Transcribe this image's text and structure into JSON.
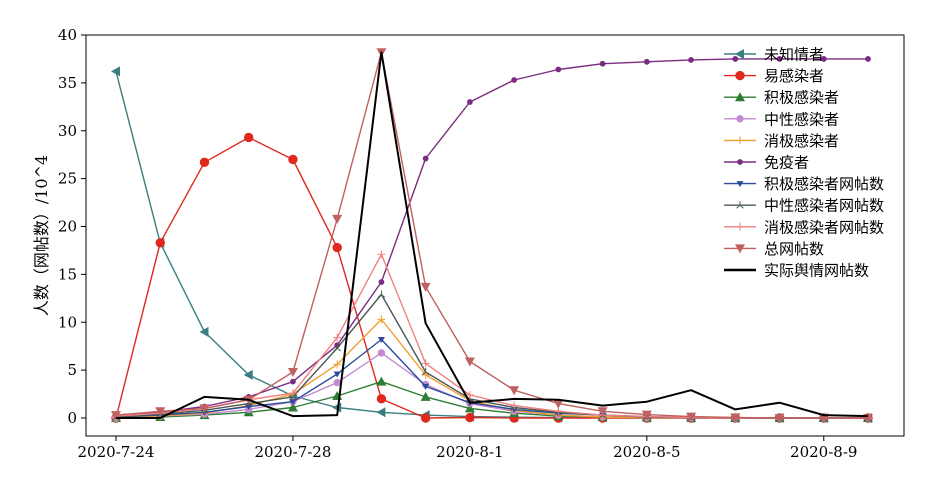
{
  "chart_data": {
    "type": "line",
    "title": "",
    "xlabel": "",
    "ylabel": "人数（网帖数）/10^4",
    "x": [
      "2020-7-24",
      "2020-7-25",
      "2020-7-26",
      "2020-7-27",
      "2020-7-28",
      "2020-7-29",
      "2020-7-30",
      "2020-7-31",
      "2020-8-1",
      "2020-8-2",
      "2020-8-3",
      "2020-8-4",
      "2020-8-5",
      "2020-8-6",
      "2020-8-7",
      "2020-8-8",
      "2020-8-9",
      "2020-8-10"
    ],
    "xticks": [
      "2020-7-24",
      "2020-7-28",
      "2020-8-1",
      "2020-8-5",
      "2020-8-9"
    ],
    "ylim": [
      0,
      40
    ],
    "yticks": [
      0,
      5,
      10,
      15,
      20,
      25,
      30,
      35,
      40
    ],
    "grid": false,
    "legend_position": "top-right",
    "series": [
      {
        "name": "未知情者",
        "color": "#3a7f7f",
        "marker": "triangle-left",
        "values": [
          36.2,
          18.3,
          9.0,
          4.5,
          2.3,
          1.1,
          0.6,
          0.3,
          0.15,
          0.08,
          0.04,
          0.02,
          0.01,
          0.0,
          0.0,
          0.0,
          0.0,
          0.0
        ]
      },
      {
        "name": "易感染者",
        "color": "#e0281e",
        "marker": "circle",
        "values": [
          0.0,
          18.3,
          26.7,
          29.3,
          27.0,
          17.8,
          2.0,
          0.0,
          0.05,
          0.0,
          0.0,
          0.0,
          0.0,
          0.0,
          0.0,
          0.0,
          0.0,
          0.0
        ]
      },
      {
        "name": "积极感染者",
        "color": "#2e7d32",
        "marker": "triangle-up",
        "values": [
          0.0,
          0.1,
          0.3,
          0.6,
          1.1,
          2.3,
          3.8,
          2.2,
          1.0,
          0.5,
          0.2,
          0.1,
          0.05,
          0.02,
          0.0,
          0.0,
          0.0,
          0.0
        ]
      },
      {
        "name": "中性感染者",
        "color": "#c58bd1",
        "marker": "small-circle",
        "values": [
          0.0,
          0.2,
          0.4,
          0.9,
          1.7,
          3.7,
          6.8,
          3.5,
          1.5,
          0.7,
          0.3,
          0.1,
          0.05,
          0.02,
          0.0,
          0.0,
          0.0,
          0.0
        ]
      },
      {
        "name": "消极感染者",
        "color": "#f0a030",
        "marker": "plus",
        "values": [
          0.0,
          0.2,
          0.5,
          1.3,
          2.5,
          5.6,
          10.3,
          4.5,
          1.8,
          0.8,
          0.3,
          0.1,
          0.05,
          0.02,
          0.0,
          0.0,
          0.0,
          0.0
        ]
      },
      {
        "name": "免疫者",
        "color": "#7b2c82",
        "marker": "dot",
        "values": [
          0.3,
          0.6,
          1.2,
          2.2,
          3.8,
          7.6,
          14.2,
          27.1,
          33.0,
          35.3,
          36.4,
          37.0,
          37.2,
          37.4,
          37.5,
          37.5,
          37.5,
          37.5
        ]
      },
      {
        "name": "积极感染者网帖数",
        "color": "#2a4a9a",
        "marker": "triangle-down-small",
        "values": [
          0.1,
          0.3,
          0.6,
          1.2,
          1.7,
          4.6,
          8.2,
          3.3,
          1.6,
          0.9,
          0.5,
          0.3,
          0.1,
          0.05,
          0.0,
          0.0,
          0.0,
          0.0
        ]
      },
      {
        "name": "中性感染者网帖数",
        "color": "#4a5a55",
        "marker": "tri",
        "values": [
          0.1,
          0.4,
          0.8,
          1.5,
          2.2,
          7.3,
          12.9,
          4.8,
          2.0,
          1.1,
          0.6,
          0.3,
          0.15,
          0.05,
          0.0,
          0.0,
          0.0,
          0.0
        ]
      },
      {
        "name": "消极感染者网帖数",
        "color": "#f08080",
        "marker": "plus",
        "values": [
          0.2,
          0.5,
          1.0,
          1.9,
          2.6,
          8.4,
          17.1,
          5.7,
          2.4,
          1.3,
          0.7,
          0.3,
          0.15,
          0.05,
          0.0,
          0.0,
          0.0,
          0.0
        ]
      },
      {
        "name": "总网帖数",
        "color": "#c06060",
        "marker": "triangle-down",
        "values": [
          0.3,
          0.7,
          1.0,
          1.9,
          4.8,
          20.8,
          38.2,
          13.7,
          5.9,
          2.9,
          1.5,
          0.7,
          0.35,
          0.15,
          0.05,
          0.0,
          0.0,
          0.0
        ]
      },
      {
        "name": "实际舆情网帖数",
        "color": "#000000",
        "marker": "none",
        "values": [
          0.0,
          0.0,
          2.2,
          1.9,
          0.2,
          0.3,
          38.2,
          9.9,
          1.6,
          2.0,
          1.9,
          1.3,
          1.7,
          2.9,
          0.9,
          1.6,
          0.3,
          0.2
        ]
      }
    ]
  }
}
